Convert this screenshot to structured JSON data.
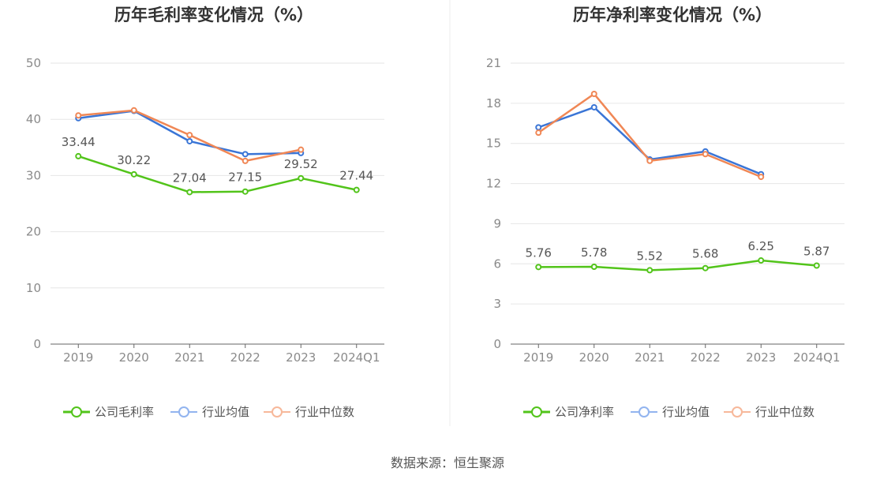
{
  "chart_data": [
    {
      "type": "line",
      "title": "历年毛利率变化情况（%）",
      "categories": [
        "2019",
        "2020",
        "2021",
        "2022",
        "2023",
        "2024Q1"
      ],
      "ylim": [
        0,
        50
      ],
      "yticks": [
        0,
        10,
        20,
        30,
        40,
        50
      ],
      "grid": true,
      "legend_position": "bottom-center",
      "series": [
        {
          "name": "公司毛利率",
          "color": "#52c41a",
          "values": [
            33.44,
            30.22,
            27.04,
            27.15,
            29.52,
            27.44
          ],
          "labels": [
            "33.44",
            "30.22",
            "27.04",
            "27.15",
            "29.52",
            "27.44"
          ]
        },
        {
          "name": "行业均值",
          "color": "#3a75d6",
          "legend_color": "#92b4ef",
          "values": [
            40.2,
            41.5,
            36.1,
            33.8,
            34.0,
            null
          ]
        },
        {
          "name": "行业中位数",
          "color": "#f08755",
          "legend_color": "#f7b89a",
          "values": [
            40.7,
            41.6,
            37.2,
            32.6,
            34.6,
            null
          ]
        }
      ]
    },
    {
      "type": "line",
      "title": "历年净利率变化情况（%）",
      "categories": [
        "2019",
        "2020",
        "2021",
        "2022",
        "2023",
        "2024Q1"
      ],
      "ylim": [
        0,
        21
      ],
      "yticks": [
        0,
        3,
        6,
        9,
        12,
        15,
        18,
        21
      ],
      "grid": true,
      "legend_position": "bottom-center",
      "series": [
        {
          "name": "公司净利率",
          "color": "#52c41a",
          "values": [
            5.76,
            5.78,
            5.52,
            5.68,
            6.25,
            5.87
          ],
          "labels": [
            "5.76",
            "5.78",
            "5.52",
            "5.68",
            "6.25",
            "5.87"
          ]
        },
        {
          "name": "行业均值",
          "color": "#3a75d6",
          "legend_color": "#92b4ef",
          "values": [
            16.2,
            17.7,
            13.8,
            14.4,
            12.7,
            null
          ]
        },
        {
          "name": "行业中位数",
          "color": "#f08755",
          "legend_color": "#f7b89a",
          "values": [
            15.8,
            18.7,
            13.7,
            14.2,
            12.5,
            null
          ]
        }
      ]
    }
  ],
  "footer": {
    "source": "数据来源：恒生聚源"
  }
}
